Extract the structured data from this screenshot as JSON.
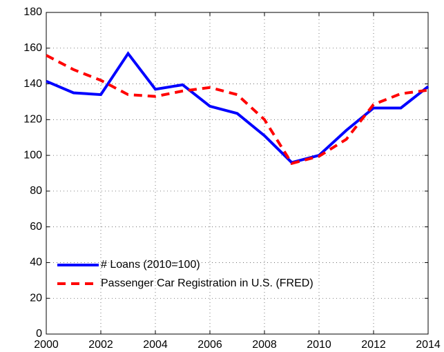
{
  "chart_data": {
    "type": "line",
    "x": [
      2000,
      2001,
      2002,
      2003,
      2004,
      2005,
      2006,
      2007,
      2008,
      2009,
      2010,
      2011,
      2012,
      2013,
      2014
    ],
    "series": [
      {
        "name": "# Loans (2010=100)",
        "color": "#0000ff",
        "dash": false,
        "values": [
          141.5,
          135,
          134,
          157,
          137,
          139.5,
          127.5,
          123.5,
          111,
          96,
          100,
          114,
          126.5,
          126.5,
          138.5
        ]
      },
      {
        "name": "Passenger Car Registration in U.S. (FRED)",
        "color": "#ff0000",
        "dash": true,
        "values": [
          156,
          148,
          142,
          134,
          133,
          136,
          138,
          134,
          120,
          95.5,
          99.5,
          109,
          128.5,
          134.5,
          136.5
        ]
      }
    ],
    "xlim": [
      2000,
      2014
    ],
    "xticks": [
      2000,
      2002,
      2004,
      2006,
      2008,
      2010,
      2012,
      2014
    ],
    "ylim": [
      0,
      180
    ],
    "yticks": [
      0,
      20,
      40,
      60,
      80,
      100,
      120,
      140,
      160,
      180
    ],
    "grid": true,
    "legend": "lower left"
  }
}
